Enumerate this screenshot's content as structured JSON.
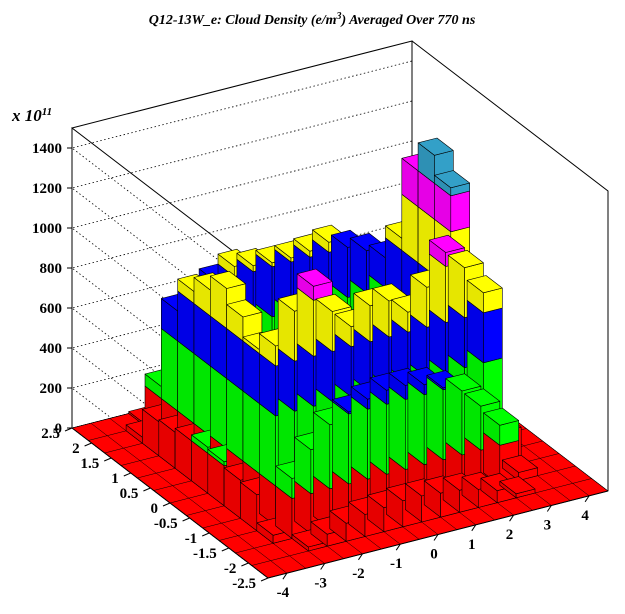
{
  "chart_data": {
    "type": "lego3d",
    "title_prefix": "Q12-13W_e: Cloud Density (e/m",
    "title_sup": "3",
    "title_suffix": ") Averaged Over 770 ns",
    "z_multiplier_label": "x 10",
    "z_multiplier_exp": "11",
    "x_axis": {
      "min": -4.5,
      "max": 4.5,
      "ticks": [
        "-4",
        "-3",
        "-2",
        "-1",
        "0",
        "1",
        "2",
        "3",
        "4"
      ]
    },
    "y_axis": {
      "min": -2.5,
      "max": 2.5,
      "ticks": [
        "-2.5",
        "-2",
        "-1.5",
        "-1",
        "-0.5",
        "0",
        "0.5",
        "1",
        "1.5",
        "2",
        "2.5"
      ]
    },
    "z_axis": {
      "min": 0,
      "max": 1500,
      "ticks": [
        "0",
        "200",
        "400",
        "600",
        "800",
        "1000",
        "1200",
        "1400"
      ]
    },
    "grid": true,
    "color_bands": [
      {
        "upto": 200,
        "color": "#ff0000"
      },
      {
        "upto": 550,
        "color": "#00ff00"
      },
      {
        "upto": 800,
        "color": "#0000ff"
      },
      {
        "upto": 1080,
        "color": "#ffff00"
      },
      {
        "upto": 1260,
        "color": "#ff00ff"
      },
      {
        "upto": 1600,
        "color": "#33a0c8"
      }
    ],
    "nx": 18,
    "ny": 12,
    "grid_values": [
      [
        0,
        0,
        0,
        0,
        0,
        0,
        0,
        0,
        0,
        0,
        0,
        0,
        0,
        0,
        0,
        0,
        0,
        0
      ],
      [
        0,
        0,
        0,
        20,
        60,
        90,
        110,
        120,
        130,
        130,
        120,
        110,
        90,
        60,
        20,
        0,
        0,
        0
      ],
      [
        0,
        0,
        40,
        300,
        420,
        520,
        560,
        600,
        620,
        620,
        600,
        560,
        520,
        420,
        300,
        40,
        0,
        0
      ],
      [
        0,
        0,
        180,
        900,
        1050,
        1150,
        1000,
        900,
        980,
        980,
        900,
        1000,
        1150,
        1050,
        900,
        180,
        0,
        0
      ],
      [
        0,
        0,
        190,
        820,
        150,
        120,
        110,
        100,
        100,
        100,
        100,
        110,
        120,
        150,
        820,
        190,
        0,
        0
      ],
      [
        0,
        0,
        220,
        920,
        130,
        60,
        30,
        30,
        30,
        30,
        30,
        30,
        60,
        130,
        1300,
        220,
        0,
        0
      ],
      [
        0,
        0,
        230,
        1000,
        120,
        40,
        20,
        20,
        20,
        20,
        20,
        20,
        40,
        120,
        1400,
        230,
        0,
        0
      ],
      [
        0,
        0,
        200,
        930,
        130,
        60,
        30,
        30,
        30,
        30,
        30,
        30,
        60,
        130,
        1260,
        200,
        0,
        0
      ],
      [
        0,
        0,
        180,
        860,
        150,
        120,
        110,
        100,
        100,
        100,
        100,
        110,
        120,
        150,
        860,
        180,
        0,
        0
      ],
      [
        0,
        0,
        170,
        700,
        760,
        800,
        850,
        830,
        820,
        820,
        830,
        850,
        800,
        760,
        700,
        170,
        0,
        0
      ],
      [
        0,
        0,
        30,
        260,
        380,
        470,
        520,
        560,
        580,
        580,
        560,
        520,
        470,
        380,
        260,
        30,
        0,
        0
      ],
      [
        0,
        0,
        0,
        10,
        40,
        70,
        90,
        100,
        110,
        110,
        100,
        90,
        70,
        40,
        10,
        0,
        0,
        0
      ]
    ]
  }
}
